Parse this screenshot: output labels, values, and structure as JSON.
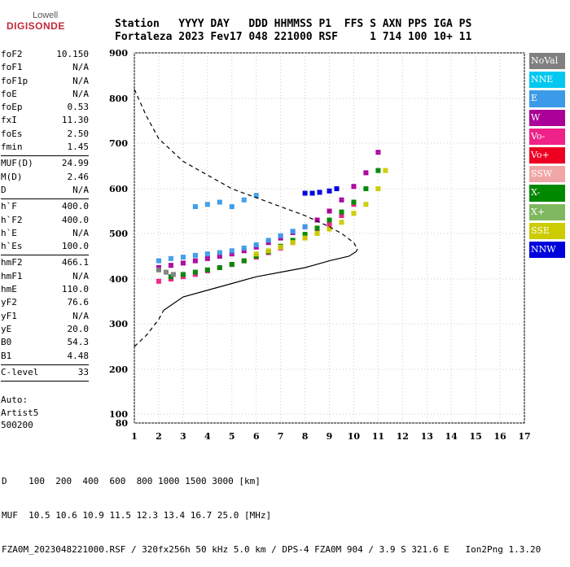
{
  "logo": {
    "line1": "Lowell",
    "line2": "DIGISONDE"
  },
  "header": {
    "line1": "Station   YYYY DAY   DDD HHMMSS P1  FFS S AXN PPS IGA PS",
    "line2": "Fortaleza 2023 Fev17 048 221000 RSF     1 714 100 10+ 11"
  },
  "params": [
    {
      "k": "foF2",
      "v": "10.150"
    },
    {
      "k": "foF1",
      "v": "N/A"
    },
    {
      "k": "foF1p",
      "v": "N/A"
    },
    {
      "k": "foE",
      "v": "N/A"
    },
    {
      "k": "foEp",
      "v": "0.53"
    },
    {
      "k": "fxI",
      "v": "11.30"
    },
    {
      "k": "foEs",
      "v": "2.50"
    },
    {
      "k": "fmin",
      "v": "1.45"
    },
    {
      "k": "---",
      "v": ""
    },
    {
      "k": "MUF(D)",
      "v": "24.99"
    },
    {
      "k": "M(D)",
      "v": "2.46"
    },
    {
      "k": "D",
      "v": "N/A"
    },
    {
      "k": "---",
      "v": ""
    },
    {
      "k": "h`F",
      "v": "400.0"
    },
    {
      "k": "h`F2",
      "v": "400.0"
    },
    {
      "k": "h`E",
      "v": "N/A"
    },
    {
      "k": "h`Es",
      "v": "100.0"
    },
    {
      "k": "---",
      "v": ""
    },
    {
      "k": "hmF2",
      "v": "466.1"
    },
    {
      "k": "hmF1",
      "v": "N/A"
    },
    {
      "k": "hmE",
      "v": "110.0"
    },
    {
      "k": "yF2",
      "v": "76.6"
    },
    {
      "k": "yF1",
      "v": "N/A"
    },
    {
      "k": "yE",
      "v": "20.0"
    },
    {
      "k": "B0",
      "v": "54.3"
    },
    {
      "k": "B1",
      "v": "4.48"
    },
    {
      "k": "---",
      "v": ""
    },
    {
      "k": "C-level",
      "v": "33"
    },
    {
      "k": "---",
      "v": ""
    }
  ],
  "auto": {
    "line1": "Auto:",
    "line2": "Artist5",
    "line3": "500200"
  },
  "legend": [
    {
      "label": "NoVal",
      "color": "#808080"
    },
    {
      "label": "NNE",
      "color": "#00c8f0"
    },
    {
      "label": "E",
      "color": "#3c9be8"
    },
    {
      "label": "W",
      "color": "#aa0099"
    },
    {
      "label": "Vo-",
      "color": "#ee2288"
    },
    {
      "label": "Vo+",
      "color": "#ee0022"
    },
    {
      "label": "SSW",
      "color": "#f0a6a6"
    },
    {
      "label": "X-",
      "color": "#008800"
    },
    {
      "label": "X+",
      "color": "#80b860"
    },
    {
      "label": "SSE",
      "color": "#cccc00"
    },
    {
      "label": "NNW",
      "color": "#0000dd"
    }
  ],
  "bottom": {
    "line1": "D    100  200  400  600  800 1000 1500 3000 [km]",
    "line2": "MUF  10.5 10.6 10.9 11.5 12.3 13.4 16.7 25.0 [MHz]",
    "line3": "FZA0M_2023048221000.RSF / 320fx256h 50 kHz 5.0 km / DPS-4 FZA0M 904 / 3.9 S 321.6 E   Ion2Png 1.3.20"
  },
  "chart_data": {
    "type": "scatter",
    "x_ticks": [
      1,
      2,
      3,
      4,
      5,
      6,
      7,
      8,
      9,
      10,
      11,
      12,
      13,
      14,
      15,
      16,
      17
    ],
    "y_ticks": [
      80,
      100,
      200,
      300,
      400,
      500,
      600,
      700,
      800,
      900
    ],
    "xlim": [
      1,
      17
    ],
    "ylim": [
      80,
      900
    ],
    "grid": true,
    "legend_position": "right",
    "series": [
      {
        "name": "W",
        "color": "#aa0099",
        "x": [
          2.0,
          2.5,
          3.0,
          3.5,
          4.0,
          4.5,
          5.0,
          5.5,
          6.0,
          6.5,
          7.0,
          7.5,
          8.0,
          8.5,
          9.0,
          9.5,
          10.0,
          10.5,
          11.0
        ],
        "y": [
          425,
          430,
          435,
          440,
          445,
          450,
          455,
          462,
          470,
          480,
          490,
          502,
          515,
          530,
          550,
          575,
          605,
          635,
          680
        ]
      },
      {
        "name": "E",
        "color": "#3c9be8",
        "x": [
          2.0,
          2.5,
          3.0,
          3.5,
          4.0,
          4.5,
          5.0,
          5.5,
          6.0,
          6.5,
          7.0,
          7.5,
          8.0,
          3.5,
          4.0,
          4.5,
          5.0,
          5.5,
          6.0
        ],
        "y": [
          440,
          445,
          448,
          452,
          455,
          458,
          462,
          468,
          475,
          485,
          495,
          505,
          515,
          560,
          565,
          570,
          560,
          575,
          585
        ]
      },
      {
        "name": "Vo-",
        "color": "#ee2288",
        "x": [
          2.0,
          2.5,
          3.0,
          3.5,
          4.0,
          4.5,
          5.0,
          5.5,
          6.0,
          6.5,
          7.0,
          7.5,
          8.0,
          8.5,
          9.0,
          9.5,
          10.0
        ],
        "y": [
          395,
          400,
          405,
          410,
          418,
          425,
          432,
          440,
          448,
          458,
          468,
          480,
          492,
          505,
          520,
          540,
          565
        ]
      },
      {
        "name": "X-",
        "color": "#008800",
        "x": [
          2.5,
          3.0,
          3.5,
          4.0,
          4.5,
          5.0,
          5.5,
          6.0,
          6.5,
          7.0,
          7.5,
          8.0,
          8.5,
          9.0,
          9.5,
          10.0,
          10.5,
          11.0
        ],
        "y": [
          405,
          410,
          415,
          420,
          425,
          432,
          440,
          450,
          460,
          472,
          485,
          498,
          512,
          530,
          548,
          570,
          600,
          640
        ]
      },
      {
        "name": "SSE",
        "color": "#cccc00",
        "x": [
          6.0,
          6.5,
          7.0,
          7.5,
          8.0,
          8.5,
          9.0,
          9.5,
          10.0,
          10.5,
          11.0,
          11.3
        ],
        "y": [
          455,
          462,
          470,
          480,
          490,
          500,
          510,
          525,
          545,
          565,
          600,
          640
        ]
      },
      {
        "name": "NNW",
        "color": "#0000dd",
        "x": [
          8.0,
          8.3,
          8.6,
          9.0,
          9.3
        ],
        "y": [
          590,
          590,
          592,
          595,
          600
        ]
      },
      {
        "name": "NoVal",
        "color": "#808080",
        "x": [
          2.0,
          2.3,
          2.6
        ],
        "y": [
          420,
          415,
          410
        ]
      }
    ],
    "profile": {
      "x": [
        2.2,
        3.0,
        4.0,
        5.0,
        6.0,
        7.0,
        8.0,
        9.0,
        9.8,
        10.1,
        10.15
      ],
      "y": [
        330,
        360,
        375,
        390,
        405,
        415,
        425,
        440,
        450,
        460,
        466
      ]
    },
    "dashed_topside": {
      "x": [
        1.0,
        1.5,
        2.0,
        3.0,
        4.0,
        5.0,
        6.0,
        7.0,
        8.0,
        9.0,
        9.5,
        10.0,
        10.15
      ],
      "y": [
        820,
        760,
        710,
        660,
        630,
        600,
        580,
        560,
        540,
        515,
        500,
        480,
        466
      ]
    },
    "dashed_bottomside": {
      "x": [
        1.0,
        1.5,
        2.0,
        2.2
      ],
      "y": [
        250,
        275,
        310,
        330
      ]
    }
  }
}
